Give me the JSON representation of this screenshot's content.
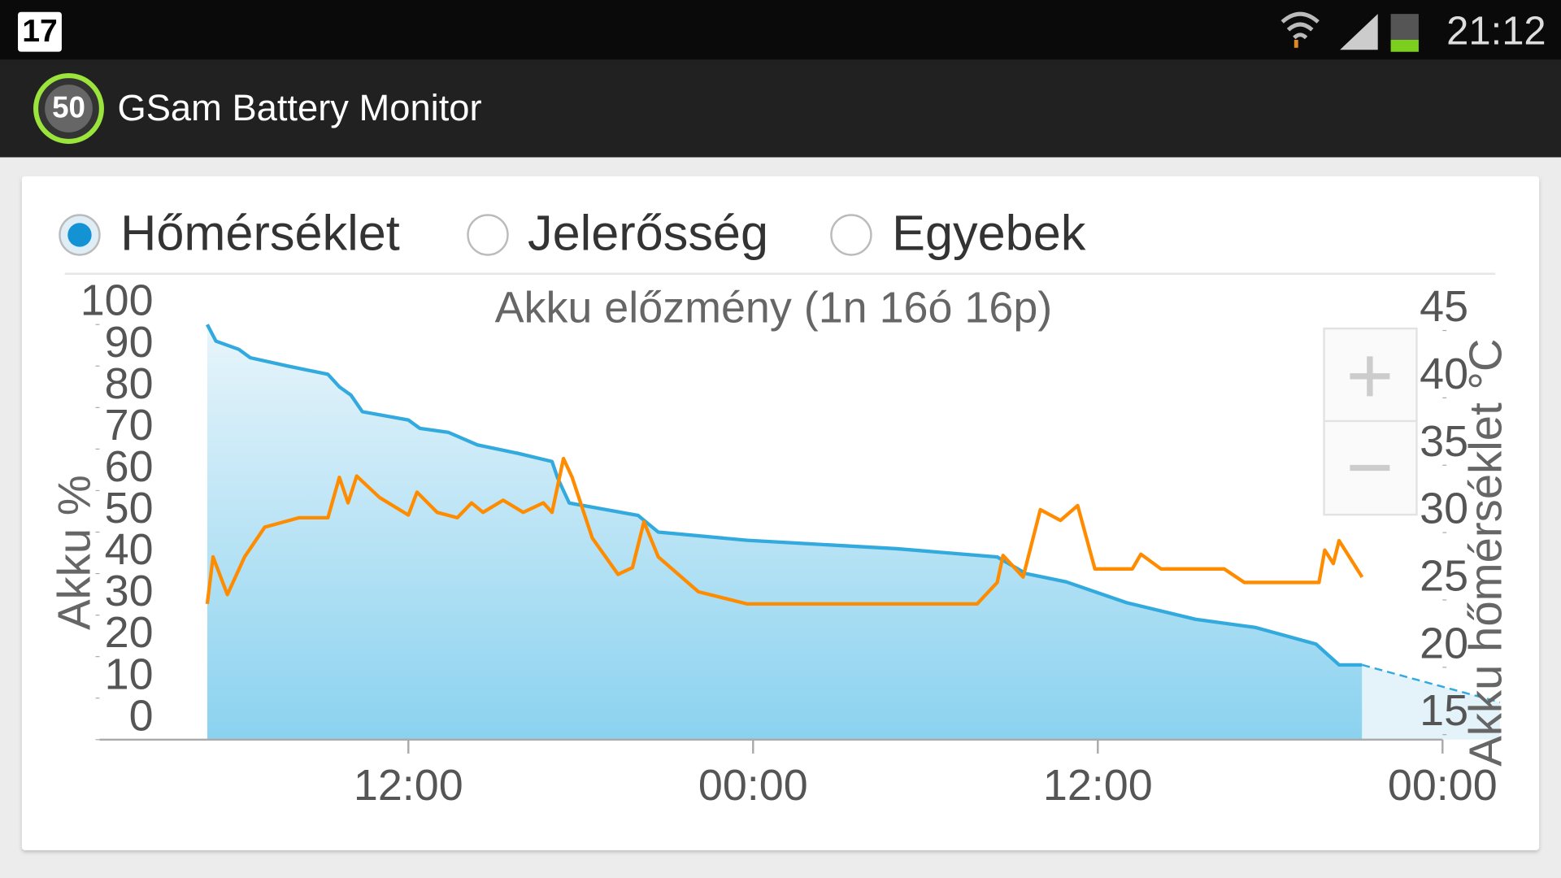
{
  "status_bar": {
    "notification": "17",
    "time": "21:12"
  },
  "app_bar": {
    "icon_label": "50",
    "title": "GSam Battery Monitor"
  },
  "options": {
    "items": [
      "Hőmérséklet",
      "Jelerősség",
      "Egyebek"
    ],
    "selected": 0
  },
  "chart_data": {
    "type": "line",
    "title": "Akku előzmény (1n 16ó 16p)",
    "y_label": "Akku %",
    "y2_label": "Akku hőmérséklet °C",
    "xlim": [
      1.25,
      48
    ],
    "xticks": [
      {
        "value": 12,
        "label": "12:00"
      },
      {
        "value": 24,
        "label": "00:00"
      },
      {
        "value": 36,
        "label": "12:00"
      },
      {
        "value": 48,
        "label": "00:00"
      }
    ],
    "ylim": [
      0,
      100
    ],
    "yticks": [
      0,
      10,
      20,
      30,
      40,
      50,
      60,
      70,
      80,
      90,
      100
    ],
    "y2lim": [
      15,
      45
    ],
    "y2ticks": [
      15,
      20,
      25,
      30,
      35,
      40,
      45
    ],
    "grid": false,
    "series": [
      {
        "color": "#33aadd",
        "area": true,
        "x": [
          5.0,
          5.3,
          6.1,
          6.5,
          7.8,
          9.2,
          9.6,
          10.0,
          10.4,
          12.0,
          12.4,
          13.4,
          14.4,
          15.8,
          17.0,
          17.2,
          17.6,
          20.0,
          20.7,
          23.8,
          29.0,
          32.5,
          33.5,
          34.9,
          37.0,
          39.4,
          41.5,
          43.6,
          44.4,
          45.2
        ],
        "values": [
          100,
          96,
          94,
          92,
          90,
          88,
          85,
          83,
          79,
          77,
          75,
          74,
          71,
          69,
          67,
          63,
          57,
          54,
          50,
          48,
          46,
          44,
          40,
          38,
          33,
          29,
          27,
          23,
          18,
          18
        ]
      },
      {
        "color": "#33aadd",
        "area": true,
        "dashed": true,
        "x": [
          45.2,
          50.0
        ],
        "values": [
          18,
          9
        ]
      },
      {
        "color": "#ff8c00",
        "axis": "y2",
        "x": [
          5.0,
          5.2,
          5.7,
          6.3,
          7.0,
          8.2,
          9.2,
          9.6,
          9.9,
          10.2,
          11.0,
          12.0,
          12.3,
          13.0,
          13.7,
          14.2,
          14.6,
          15.3,
          16.0,
          16.7,
          17.0,
          17.4,
          17.7,
          18.4,
          19.3,
          19.8,
          20.2,
          20.7,
          22.1,
          23.8,
          31.8,
          32.5,
          32.7,
          33.4,
          34.0,
          34.7,
          35.3,
          35.9,
          37.2,
          37.5,
          38.2,
          40.4,
          41.1,
          43.7,
          43.9,
          44.2,
          44.4,
          45.2
        ],
        "values": [
          24.7,
          28.2,
          25.4,
          28.2,
          30.4,
          31.1,
          31.1,
          34.1,
          32.2,
          34.2,
          32.6,
          31.3,
          33.0,
          31.5,
          31.1,
          32.2,
          31.5,
          32.4,
          31.5,
          32.2,
          31.5,
          35.5,
          34.1,
          29.6,
          26.9,
          27.4,
          30.8,
          28.2,
          25.6,
          24.7,
          24.7,
          26.3,
          28.3,
          26.7,
          31.7,
          30.9,
          32.0,
          27.3,
          27.3,
          28.4,
          27.3,
          27.3,
          26.3,
          26.3,
          28.7,
          27.7,
          29.4,
          26.7
        ]
      }
    ]
  }
}
